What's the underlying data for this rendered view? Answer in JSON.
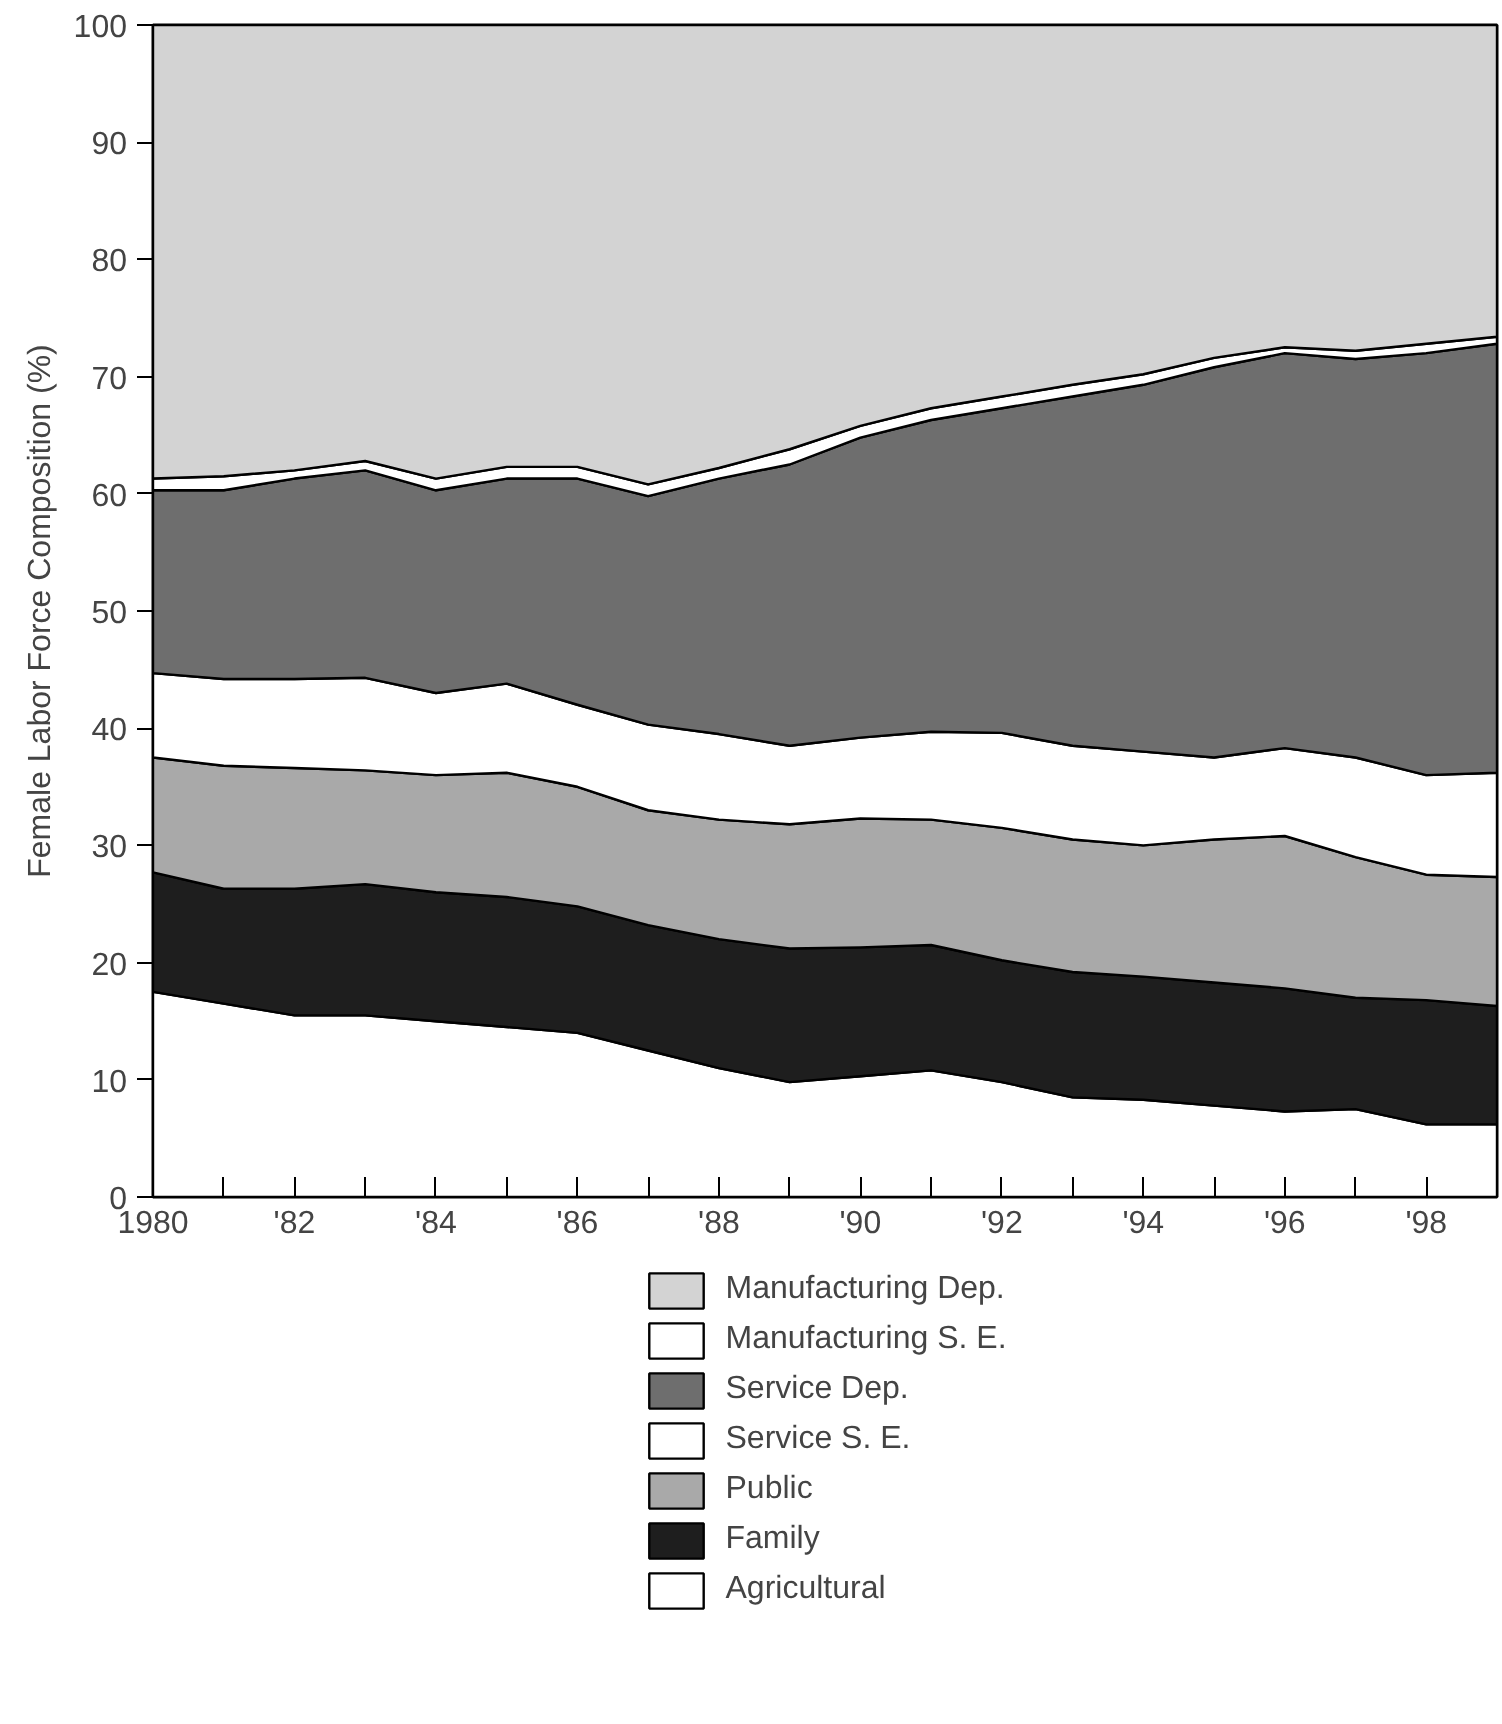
{
  "chart_data": {
    "type": "area",
    "stacked": true,
    "ylabel": "Female Labor Force Composition (%)",
    "x": [
      1980,
      1981,
      1982,
      1983,
      1984,
      1985,
      1986,
      1987,
      1988,
      1989,
      1990,
      1991,
      1992,
      1993,
      1994,
      1995,
      1996,
      1997,
      1998,
      1999
    ],
    "xlim": [
      1980,
      1999
    ],
    "xticks": [
      {
        "value": 1980,
        "label": "1980"
      },
      {
        "value": 1981,
        "label": null
      },
      {
        "value": 1982,
        "label": "'82"
      },
      {
        "value": 1983,
        "label": null
      },
      {
        "value": 1984,
        "label": "'84"
      },
      {
        "value": 1985,
        "label": null
      },
      {
        "value": 1986,
        "label": "'86"
      },
      {
        "value": 1987,
        "label": null
      },
      {
        "value": 1988,
        "label": "'88"
      },
      {
        "value": 1989,
        "label": null
      },
      {
        "value": 1990,
        "label": "'90"
      },
      {
        "value": 1991,
        "label": null
      },
      {
        "value": 1992,
        "label": "'92"
      },
      {
        "value": 1993,
        "label": null
      },
      {
        "value": 1994,
        "label": "'94"
      },
      {
        "value": 1995,
        "label": null
      },
      {
        "value": 1996,
        "label": "'96"
      },
      {
        "value": 1997,
        "label": null
      },
      {
        "value": 1998,
        "label": "'98"
      }
    ],
    "ylim": [
      0,
      100
    ],
    "yticks": [
      0,
      10,
      20,
      30,
      40,
      50,
      60,
      70,
      80,
      90,
      100
    ],
    "legend": "bottom",
    "series": [
      {
        "name": "Agricultural",
        "color": "#ffffff",
        "values": [
          17.5,
          16.5,
          15.5,
          15.5,
          15.0,
          14.5,
          14.0,
          12.5,
          11.0,
          9.8,
          10.3,
          10.8,
          9.8,
          8.5,
          8.3,
          7.8,
          7.3,
          7.5,
          6.2,
          6.2
        ]
      },
      {
        "name": "Family",
        "color": "#1e1e1e",
        "values": [
          10.2,
          9.8,
          10.8,
          11.2,
          11.0,
          11.1,
          10.8,
          10.7,
          11.0,
          11.4,
          11.0,
          10.7,
          10.4,
          10.7,
          10.5,
          10.5,
          10.5,
          9.5,
          10.6,
          10.1
        ]
      },
      {
        "name": "Public",
        "color": "#a9a9a9",
        "values": [
          9.8,
          10.5,
          10.3,
          9.7,
          10.0,
          10.6,
          10.2,
          9.8,
          10.2,
          10.6,
          11.0,
          10.7,
          11.3,
          11.3,
          11.2,
          12.2,
          13.0,
          12.0,
          10.7,
          11.0
        ]
      },
      {
        "name": "Service S. E.",
        "color": "#ffffff",
        "values": [
          7.2,
          7.4,
          7.6,
          7.9,
          7.0,
          7.6,
          7.0,
          7.3,
          7.3,
          6.7,
          6.9,
          7.5,
          8.1,
          8.0,
          8.0,
          7.0,
          7.5,
          8.5,
          8.5,
          8.9
        ]
      },
      {
        "name": "Service Dep.",
        "color": "#6e6e6e",
        "values": [
          15.6,
          16.1,
          17.1,
          17.7,
          17.3,
          17.5,
          19.3,
          19.5,
          21.8,
          24.0,
          25.6,
          26.6,
          27.7,
          29.8,
          31.3,
          33.3,
          33.7,
          34.0,
          36.0,
          36.6
        ]
      },
      {
        "name": "Manufacturing S. E.",
        "color": "#ffffff",
        "values": [
          1.0,
          1.2,
          0.7,
          0.8,
          1.0,
          1.0,
          1.0,
          1.0,
          0.9,
          1.3,
          1.0,
          1.0,
          1.0,
          1.0,
          0.9,
          0.8,
          0.5,
          0.7,
          0.8,
          0.6
        ]
      },
      {
        "name": "Manufacturing Dep.",
        "color": "#d3d3d3",
        "values": [
          38.7,
          38.5,
          38.0,
          37.2,
          38.7,
          37.7,
          37.7,
          39.2,
          37.8,
          36.2,
          34.2,
          32.7,
          31.7,
          30.7,
          29.8,
          28.4,
          27.5,
          27.8,
          27.2,
          26.6
        ]
      }
    ]
  }
}
